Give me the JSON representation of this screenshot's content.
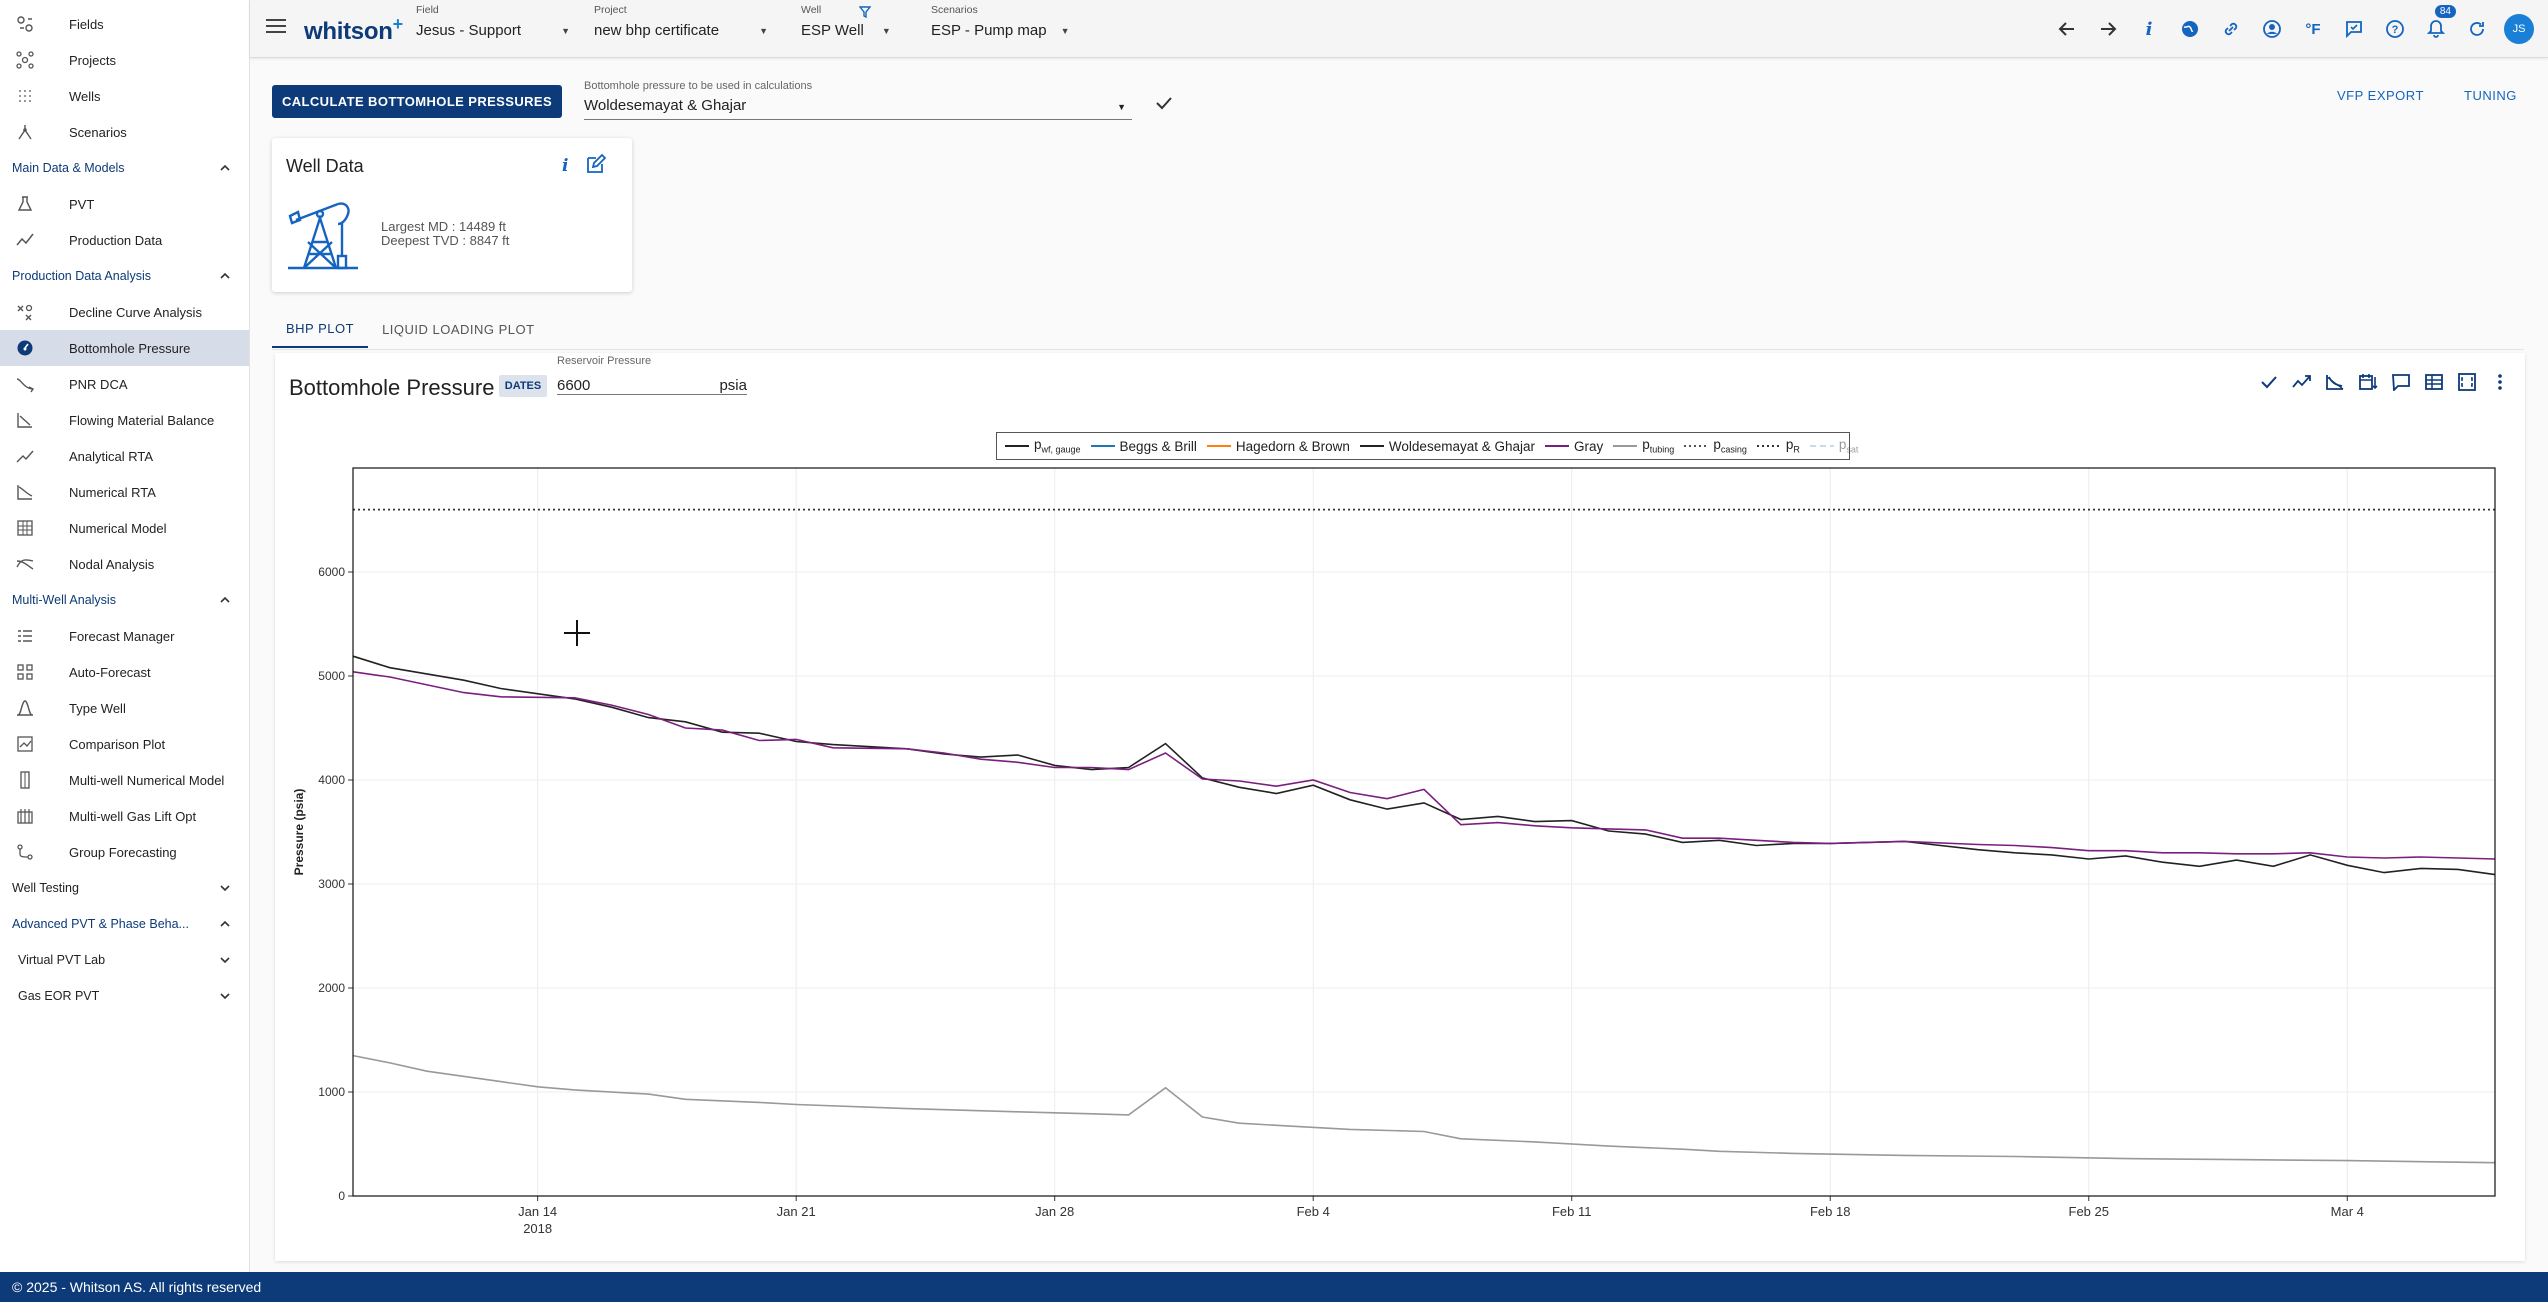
{
  "sidebar": {
    "top_items": [
      {
        "label": "Fields",
        "icon": "fields-icon"
      },
      {
        "label": "Projects",
        "icon": "projects-icon"
      },
      {
        "label": "Wells",
        "icon": "wells-icon"
      },
      {
        "label": "Scenarios",
        "icon": "scenarios-icon"
      }
    ],
    "sections": [
      {
        "title": "Main Data & Models",
        "expanded": true,
        "items": [
          {
            "label": "PVT",
            "icon": "flask-icon"
          },
          {
            "label": "Production Data",
            "icon": "trend-icon"
          }
        ]
      },
      {
        "title": "Production Data Analysis",
        "expanded": true,
        "items": [
          {
            "label": "Decline Curve Analysis",
            "icon": "decline-icon"
          },
          {
            "label": "Bottomhole Pressure",
            "icon": "gauge-icon",
            "active": true
          },
          {
            "label": "PNR DCA",
            "icon": "pnr-icon"
          },
          {
            "label": "Flowing Material Balance",
            "icon": "fmb-icon"
          },
          {
            "label": "Analytical RTA",
            "icon": "rta-icon"
          },
          {
            "label": "Numerical RTA",
            "icon": "numerical-rta-icon"
          },
          {
            "label": "Numerical Model",
            "icon": "grid-icon"
          },
          {
            "label": "Nodal Analysis",
            "icon": "nodal-icon"
          }
        ]
      },
      {
        "title": "Multi-Well Analysis",
        "expanded": true,
        "items": [
          {
            "label": "Forecast Manager",
            "icon": "list-icon"
          },
          {
            "label": "Auto-Forecast",
            "icon": "auto-forecast-icon"
          },
          {
            "label": "Type Well",
            "icon": "bell-curve-icon"
          },
          {
            "label": "Comparison Plot",
            "icon": "comparison-icon"
          },
          {
            "label": "Multi-well Numerical Model",
            "icon": "multi-model-icon"
          },
          {
            "label": "Multi-well Gas Lift Opt",
            "icon": "gas-lift-icon"
          },
          {
            "label": "Group Forecasting",
            "icon": "group-icon"
          }
        ]
      }
    ],
    "collapsed_sections": [
      "Well Testing",
      "Advanced PVT & Phase Beha...",
      "Virtual PVT Lab",
      "Gas EOR PVT"
    ]
  },
  "topbar": {
    "brand": "whitson",
    "brand_plus": "+",
    "selectors": [
      {
        "label": "Field",
        "value": "Jesus - Support"
      },
      {
        "label": "Project",
        "value": "new bhp certificate"
      },
      {
        "label": "Well",
        "value": "ESP Well"
      },
      {
        "label": "Scenarios",
        "value": "ESP - Pump map"
      }
    ],
    "notification_count": "84",
    "temp_unit": "°F",
    "avatar_initials": "JS"
  },
  "main": {
    "calc_button": "CALCULATE BOTTOMHOLE PRESSURES",
    "bhp_select": {
      "label": "Bottomhole pressure to be used in calculations",
      "value": "Woldesemayat & Ghajar"
    },
    "vfp_export": "VFP EXPORT",
    "tuning": "TUNING",
    "well_data": {
      "title": "Well Data",
      "largest_md": "Largest MD :  14489 ft",
      "deepest_tvd": "Deepest TVD :  8847 ft"
    },
    "tabs": [
      "BHP PLOT",
      "LIQUID LOADING PLOT"
    ],
    "chart_title": "Bottomhole Pressure",
    "dates_button": "DATES",
    "reservoir": {
      "label": "Reservoir Pressure",
      "value": "6600",
      "unit": "psia"
    },
    "footer": "© 2025 - Whitson AS. All rights reserved"
  },
  "colors": {
    "brand": "#0d3a78",
    "accent": "#1565c0",
    "gray_series": "#7b1f7e",
    "tubing": "#999999"
  },
  "chart_data": {
    "type": "line",
    "title": "Bottomhole Pressure",
    "ylabel": "Pressure (psia)",
    "xlabel": "",
    "x_range": [
      "2018-01-09",
      "2018-03-08"
    ],
    "ylim": [
      0,
      7000
    ],
    "yticks": [
      0,
      1000,
      2000,
      3000,
      4000,
      5000,
      6000
    ],
    "xticks": [
      {
        "date": "2018-01-14",
        "label": "Jan 14",
        "sublabel": "2018"
      },
      {
        "date": "2018-01-21",
        "label": "Jan 21"
      },
      {
        "date": "2018-01-28",
        "label": "Jan 28"
      },
      {
        "date": "2018-02-04",
        "label": "Feb 4"
      },
      {
        "date": "2018-02-11",
        "label": "Feb 11"
      },
      {
        "date": "2018-02-18",
        "label": "Feb 18"
      },
      {
        "date": "2018-02-25",
        "label": "Feb 25"
      },
      {
        "date": "2018-03-04",
        "label": "Mar 4"
      }
    ],
    "grid": true,
    "legend_position": "top-center",
    "legend": [
      {
        "name": "p",
        "sub": "wf, gauge",
        "color": "#222222",
        "dash": "solid"
      },
      {
        "name": "Beggs & Brill",
        "color": "#1f77b4",
        "dash": "solid"
      },
      {
        "name": "Hagedorn & Brown",
        "color": "#ff7f0e",
        "dash": "solid"
      },
      {
        "name": "Woldesemayat & Ghajar",
        "color": "#222222",
        "dash": "solid"
      },
      {
        "name": "Gray",
        "color": "#7b1f7e",
        "dash": "solid"
      },
      {
        "name": "p",
        "sub": "tubing",
        "color": "#999999",
        "dash": "solid"
      },
      {
        "name": "p",
        "sub": "casing",
        "color": "#555555",
        "dash": "dotted"
      },
      {
        "name": "p",
        "sub": "R",
        "color": "#333333",
        "dash": "dotted"
      },
      {
        "name": "p",
        "sub": "sat",
        "color": "#7fb3d5",
        "dash": "dashed",
        "faded": true
      }
    ],
    "reservoir_pressure": 6600,
    "series": [
      {
        "name": "Woldesemayat & Ghajar",
        "color": "#222222",
        "points": [
          [
            "2018-01-09",
            5190
          ],
          [
            "2018-01-10",
            5080
          ],
          [
            "2018-01-12",
            4960
          ],
          [
            "2018-01-13",
            4880
          ],
          [
            "2018-01-15",
            4780
          ],
          [
            "2018-01-16",
            4700
          ],
          [
            "2018-01-17",
            4600
          ],
          [
            "2018-01-18",
            4560
          ],
          [
            "2018-01-19",
            4460
          ],
          [
            "2018-01-20",
            4450
          ],
          [
            "2018-01-21",
            4370
          ],
          [
            "2018-01-22",
            4340
          ],
          [
            "2018-01-24",
            4300
          ],
          [
            "2018-01-25",
            4250
          ],
          [
            "2018-01-26",
            4220
          ],
          [
            "2018-01-27",
            4240
          ],
          [
            "2018-01-28",
            4140
          ],
          [
            "2018-01-29",
            4100
          ],
          [
            "2018-01-30",
            4120
          ],
          [
            "2018-01-31",
            4350
          ],
          [
            "2018-02-01",
            4020
          ],
          [
            "2018-02-02",
            3930
          ],
          [
            "2018-02-03",
            3870
          ],
          [
            "2018-02-04",
            3950
          ],
          [
            "2018-02-05",
            3810
          ],
          [
            "2018-02-06",
            3720
          ],
          [
            "2018-02-07",
            3780
          ],
          [
            "2018-02-08",
            3620
          ],
          [
            "2018-02-09",
            3650
          ],
          [
            "2018-02-10",
            3600
          ],
          [
            "2018-02-11",
            3610
          ],
          [
            "2018-02-12",
            3510
          ],
          [
            "2018-02-13",
            3480
          ],
          [
            "2018-02-14",
            3400
          ],
          [
            "2018-02-15",
            3420
          ],
          [
            "2018-02-16",
            3370
          ],
          [
            "2018-02-17",
            3390
          ],
          [
            "2018-02-18",
            3390
          ],
          [
            "2018-02-20",
            3410
          ],
          [
            "2018-02-22",
            3330
          ],
          [
            "2018-02-23",
            3300
          ],
          [
            "2018-02-24",
            3280
          ],
          [
            "2018-02-25",
            3240
          ],
          [
            "2018-02-26",
            3270
          ],
          [
            "2018-02-27",
            3210
          ],
          [
            "2018-02-28",
            3170
          ],
          [
            "2018-03-01",
            3230
          ],
          [
            "2018-03-02",
            3170
          ],
          [
            "2018-03-03",
            3280
          ],
          [
            "2018-03-04",
            3180
          ],
          [
            "2018-03-05",
            3110
          ],
          [
            "2018-03-06",
            3150
          ],
          [
            "2018-03-07",
            3140
          ],
          [
            "2018-03-08",
            3090
          ]
        ]
      },
      {
        "name": "Gray",
        "color": "#7b1f7e",
        "points": [
          [
            "2018-01-09",
            5040
          ],
          [
            "2018-01-10",
            4990
          ],
          [
            "2018-01-12",
            4840
          ],
          [
            "2018-01-13",
            4800
          ],
          [
            "2018-01-15",
            4790
          ],
          [
            "2018-01-16",
            4720
          ],
          [
            "2018-01-17",
            4630
          ],
          [
            "2018-01-18",
            4500
          ],
          [
            "2018-01-19",
            4480
          ],
          [
            "2018-01-20",
            4380
          ],
          [
            "2018-01-21",
            4390
          ],
          [
            "2018-01-22",
            4310
          ],
          [
            "2018-01-24",
            4300
          ],
          [
            "2018-01-25",
            4260
          ],
          [
            "2018-01-26",
            4200
          ],
          [
            "2018-01-27",
            4170
          ],
          [
            "2018-01-28",
            4120
          ],
          [
            "2018-01-29",
            4120
          ],
          [
            "2018-01-30",
            4100
          ],
          [
            "2018-01-31",
            4260
          ],
          [
            "2018-02-01",
            4010
          ],
          [
            "2018-02-02",
            3990
          ],
          [
            "2018-02-03",
            3940
          ],
          [
            "2018-02-04",
            4000
          ],
          [
            "2018-02-05",
            3880
          ],
          [
            "2018-02-06",
            3820
          ],
          [
            "2018-02-07",
            3910
          ],
          [
            "2018-02-08",
            3570
          ],
          [
            "2018-02-09",
            3590
          ],
          [
            "2018-02-10",
            3560
          ],
          [
            "2018-02-11",
            3540
          ],
          [
            "2018-02-12",
            3530
          ],
          [
            "2018-02-13",
            3520
          ],
          [
            "2018-02-14",
            3440
          ],
          [
            "2018-02-15",
            3440
          ],
          [
            "2018-02-16",
            3420
          ],
          [
            "2018-02-17",
            3400
          ],
          [
            "2018-02-18",
            3390
          ],
          [
            "2018-02-20",
            3410
          ],
          [
            "2018-02-22",
            3380
          ],
          [
            "2018-02-23",
            3370
          ],
          [
            "2018-02-24",
            3350
          ],
          [
            "2018-02-25",
            3320
          ],
          [
            "2018-02-26",
            3320
          ],
          [
            "2018-02-27",
            3300
          ],
          [
            "2018-02-28",
            3300
          ],
          [
            "2018-03-01",
            3290
          ],
          [
            "2018-03-02",
            3290
          ],
          [
            "2018-03-03",
            3300
          ],
          [
            "2018-03-04",
            3260
          ],
          [
            "2018-03-05",
            3250
          ],
          [
            "2018-03-06",
            3260
          ],
          [
            "2018-03-07",
            3250
          ],
          [
            "2018-03-08",
            3240
          ]
        ]
      },
      {
        "name": "p tubing",
        "color": "#999999",
        "points": [
          [
            "2018-01-09",
            1350
          ],
          [
            "2018-01-10",
            1280
          ],
          [
            "2018-01-11",
            1200
          ],
          [
            "2018-01-13",
            1100
          ],
          [
            "2018-01-14",
            1050
          ],
          [
            "2018-01-15",
            1020
          ],
          [
            "2018-01-17",
            980
          ],
          [
            "2018-01-18",
            930
          ],
          [
            "2018-01-20",
            900
          ],
          [
            "2018-01-21",
            880
          ],
          [
            "2018-01-24",
            840
          ],
          [
            "2018-01-27",
            810
          ],
          [
            "2018-01-29",
            790
          ],
          [
            "2018-01-30",
            780
          ],
          [
            "2018-01-31",
            1040
          ],
          [
            "2018-02-01",
            760
          ],
          [
            "2018-02-02",
            700
          ],
          [
            "2018-02-03",
            680
          ],
          [
            "2018-02-05",
            640
          ],
          [
            "2018-02-07",
            620
          ],
          [
            "2018-02-08",
            550
          ],
          [
            "2018-02-10",
            520
          ],
          [
            "2018-02-12",
            480
          ],
          [
            "2018-02-14",
            450
          ],
          [
            "2018-02-15",
            430
          ],
          [
            "2018-02-17",
            410
          ],
          [
            "2018-02-20",
            390
          ],
          [
            "2018-02-23",
            380
          ],
          [
            "2018-02-26",
            360
          ],
          [
            "2018-03-01",
            350
          ],
          [
            "2018-03-04",
            340
          ],
          [
            "2018-03-06",
            330
          ],
          [
            "2018-03-08",
            320
          ]
        ]
      }
    ]
  }
}
